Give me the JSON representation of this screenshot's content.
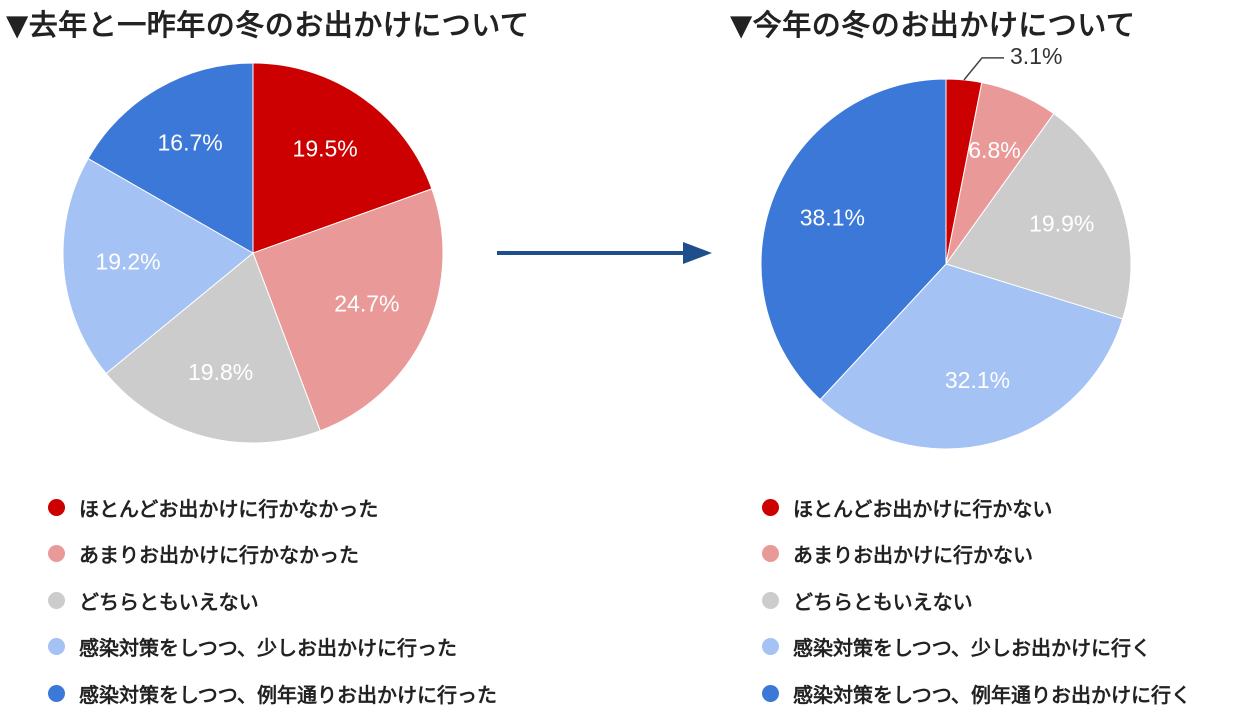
{
  "colors": [
    "#cc0000",
    "#ea9999",
    "#cccccc",
    "#a4c2f4",
    "#3c78d8"
  ],
  "chart_data": [
    {
      "type": "pie",
      "title": "▼去年と一昨年の冬のお出かけについて",
      "slices": [
        {
          "label": "ほとんどお出かけに行かなかった",
          "value": 19.5,
          "display": "19.5%"
        },
        {
          "label": "あまりお出かけに行かなかった",
          "value": 24.7,
          "display": "24.7%"
        },
        {
          "label": "どちらともいえない",
          "value": 19.8,
          "display": "19.8%"
        },
        {
          "label": "感染対策をしつつ、少しお出かけに行った",
          "value": 19.2,
          "display": "19.2%"
        },
        {
          "label": "感染対策をしつつ、例年通りお出かけに行った",
          "value": 16.7,
          "display": "16.7%"
        }
      ]
    },
    {
      "type": "pie",
      "title": "▼今年の冬のお出かけについて",
      "slices": [
        {
          "label": "ほとんどお出かけに行かない",
          "value": 3.1,
          "display": "3.1%"
        },
        {
          "label": "あまりお出かけに行かない",
          "value": 6.8,
          "display": "6.8%"
        },
        {
          "label": "どちらともいえない",
          "value": 19.9,
          "display": "19.9%"
        },
        {
          "label": "感染対策をしつつ、少しお出かけに行く",
          "value": 32.1,
          "display": "32.1%"
        },
        {
          "label": "感染対策をしつつ、例年通りお出かけに行く",
          "value": 38.1,
          "display": "38.1%"
        }
      ]
    }
  ]
}
